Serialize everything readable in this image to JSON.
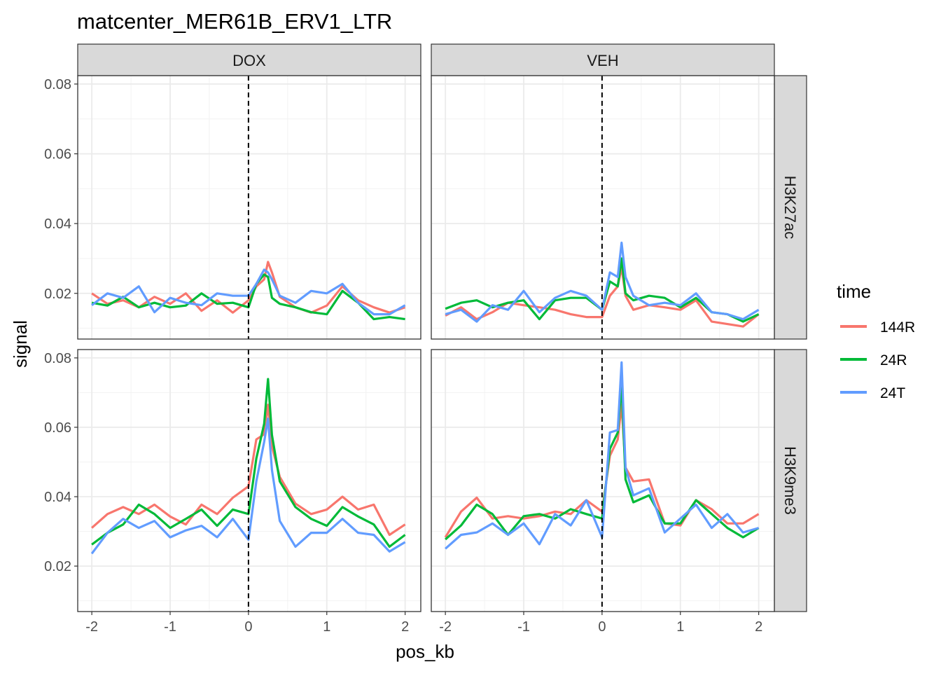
{
  "chart_data": {
    "type": "line",
    "title": "matcenter_MER61B_ERV1_LTR",
    "xlabel": "pos_kb",
    "ylabel": "signal",
    "xlim": [
      -2.18,
      2.2
    ],
    "ylim": [
      0.0069,
      0.0824
    ],
    "x_ticks": [
      -2,
      -1,
      0,
      1,
      2
    ],
    "x_tick_labels": [
      "-2",
      "-1",
      "0",
      "1",
      "2"
    ],
    "y_ticks": [
      0.02,
      0.04,
      0.06,
      0.08
    ],
    "y_tick_labels": [
      "0.02",
      "0.04",
      "0.06",
      "0.08"
    ],
    "vline": 0,
    "grid": true,
    "legend": {
      "title": "time",
      "placement": "right",
      "entries": [
        "144R",
        "24R",
        "24T"
      ]
    },
    "colors": {
      "144R": "#F8766D",
      "24R": "#00BA38",
      "24T": "#619CFF"
    },
    "facet_cols": [
      "DOX",
      "VEH"
    ],
    "facet_rows": [
      "H3K27ac",
      "H3K9me3"
    ],
    "x": [
      -2,
      -1.8,
      -1.6,
      -1.4,
      -1.2,
      -1,
      -0.8,
      -0.6,
      -0.4,
      -0.2,
      0,
      0.1,
      0.2,
      0.25,
      0.3,
      0.4,
      0.6,
      0.8,
      1,
      1.2,
      1.4,
      1.6,
      1.8,
      2
    ],
    "panels": [
      {
        "col": "DOX",
        "row": "H3K27ac",
        "series": [
          {
            "name": "144R",
            "values": [
              0.02,
              0.017,
              0.018,
              0.016,
              0.019,
              0.017,
              0.02,
              0.015,
              0.018,
              0.0145,
              0.018,
              0.022,
              0.024,
              0.029,
              0.026,
              0.019,
              0.016,
              0.0145,
              0.0165,
              0.022,
              0.018,
              0.016,
              0.0145,
              0.016
            ]
          },
          {
            "name": "24R",
            "values": [
              0.0173,
              0.0165,
              0.019,
              0.016,
              0.0173,
              0.016,
              0.0165,
              0.02,
              0.017,
              0.0173,
              0.016,
              0.0227,
              0.0254,
              0.0247,
              0.0187,
              0.017,
              0.016,
              0.0146,
              0.014,
              0.0207,
              0.0173,
              0.0126,
              0.0132,
              0.0126
            ]
          },
          {
            "name": "24T",
            "values": [
              0.0166,
              0.02,
              0.0187,
              0.022,
              0.0146,
              0.0187,
              0.0173,
              0.0166,
              0.02,
              0.0193,
              0.0193,
              0.0227,
              0.0268,
              0.026,
              0.024,
              0.0193,
              0.0173,
              0.0207,
              0.02,
              0.0227,
              0.0173,
              0.014,
              0.014,
              0.0166
            ]
          }
        ]
      },
      {
        "col": "VEH",
        "row": "H3K27ac",
        "series": [
          {
            "name": "144R",
            "values": [
              0.0136,
              0.016,
              0.0126,
              0.0146,
              0.0173,
              0.0166,
              0.016,
              0.0153,
              0.014,
              0.0132,
              0.0132,
              0.0193,
              0.022,
              0.0274,
              0.0193,
              0.0153,
              0.0166,
              0.016,
              0.0153,
              0.018,
              0.0119,
              0.0112,
              0.0105,
              0.014
            ]
          },
          {
            "name": "24R",
            "values": [
              0.0156,
              0.0173,
              0.018,
              0.016,
              0.0173,
              0.018,
              0.0126,
              0.018,
              0.0187,
              0.0187,
              0.0153,
              0.0234,
              0.022,
              0.03,
              0.02,
              0.018,
              0.0193,
              0.0187,
              0.016,
              0.0187,
              0.0146,
              0.014,
              0.0119,
              0.014
            ]
          },
          {
            "name": "24T",
            "values": [
              0.014,
              0.0153,
              0.0119,
              0.0166,
              0.0153,
              0.0207,
              0.0146,
              0.0187,
              0.0207,
              0.0193,
              0.0153,
              0.026,
              0.0247,
              0.0345,
              0.0247,
              0.0193,
              0.0166,
              0.0173,
              0.0166,
              0.02,
              0.0146,
              0.014,
              0.0126,
              0.0153
            ]
          }
        ]
      },
      {
        "col": "DOX",
        "row": "H3K9me3",
        "series": [
          {
            "name": "144R",
            "values": [
              0.031,
              0.035,
              0.037,
              0.035,
              0.0377,
              0.0343,
              0.032,
              0.0377,
              0.035,
              0.0397,
              0.043,
              0.0565,
              0.058,
              0.0665,
              0.0545,
              0.0457,
              0.038,
              0.035,
              0.0363,
              0.04,
              0.0363,
              0.0377,
              0.029,
              0.032
            ]
          },
          {
            "name": "24R",
            "values": [
              0.0262,
              0.0296,
              0.032,
              0.0377,
              0.035,
              0.031,
              0.0336,
              0.0363,
              0.0316,
              0.0363,
              0.035,
              0.051,
              0.061,
              0.0739,
              0.0578,
              0.0444,
              0.037,
              0.0336,
              0.0316,
              0.037,
              0.0343,
              0.032,
              0.0256,
              0.029
            ]
          },
          {
            "name": "24T",
            "values": [
              0.0236,
              0.0296,
              0.0336,
              0.031,
              0.033,
              0.0283,
              0.0303,
              0.0316,
              0.0283,
              0.0336,
              0.0276,
              0.0444,
              0.0558,
              0.0625,
              0.0477,
              0.033,
              0.0256,
              0.0296,
              0.0296,
              0.0336,
              0.0296,
              0.029,
              0.0242,
              0.0269
            ]
          }
        ]
      },
      {
        "col": "VEH",
        "row": "H3K9me3",
        "series": [
          {
            "name": "144R",
            "values": [
              0.0283,
              0.0357,
              0.0397,
              0.0337,
              0.0344,
              0.0337,
              0.0344,
              0.0357,
              0.035,
              0.039,
              0.0357,
              0.0518,
              0.0565,
              0.0666,
              0.0484,
              0.0444,
              0.045,
              0.0323,
              0.0317,
              0.039,
              0.0364,
              0.0323,
              0.0323,
              0.035
            ]
          },
          {
            "name": "24R",
            "values": [
              0.0277,
              0.0317,
              0.0377,
              0.035,
              0.029,
              0.0344,
              0.035,
              0.0337,
              0.0364,
              0.035,
              0.0337,
              0.0538,
              0.0585,
              0.0726,
              0.045,
              0.0384,
              0.0404,
              0.0323,
              0.0323,
              0.039,
              0.035,
              0.031,
              0.0283,
              0.031
            ]
          },
          {
            "name": "24T",
            "values": [
              0.025,
              0.029,
              0.0297,
              0.0323,
              0.029,
              0.0323,
              0.0263,
              0.035,
              0.0317,
              0.039,
              0.0283,
              0.0585,
              0.0592,
              0.0787,
              0.0484,
              0.0404,
              0.0424,
              0.0297,
              0.0337,
              0.0377,
              0.031,
              0.035,
              0.0297,
              0.031
            ]
          }
        ]
      }
    ]
  }
}
